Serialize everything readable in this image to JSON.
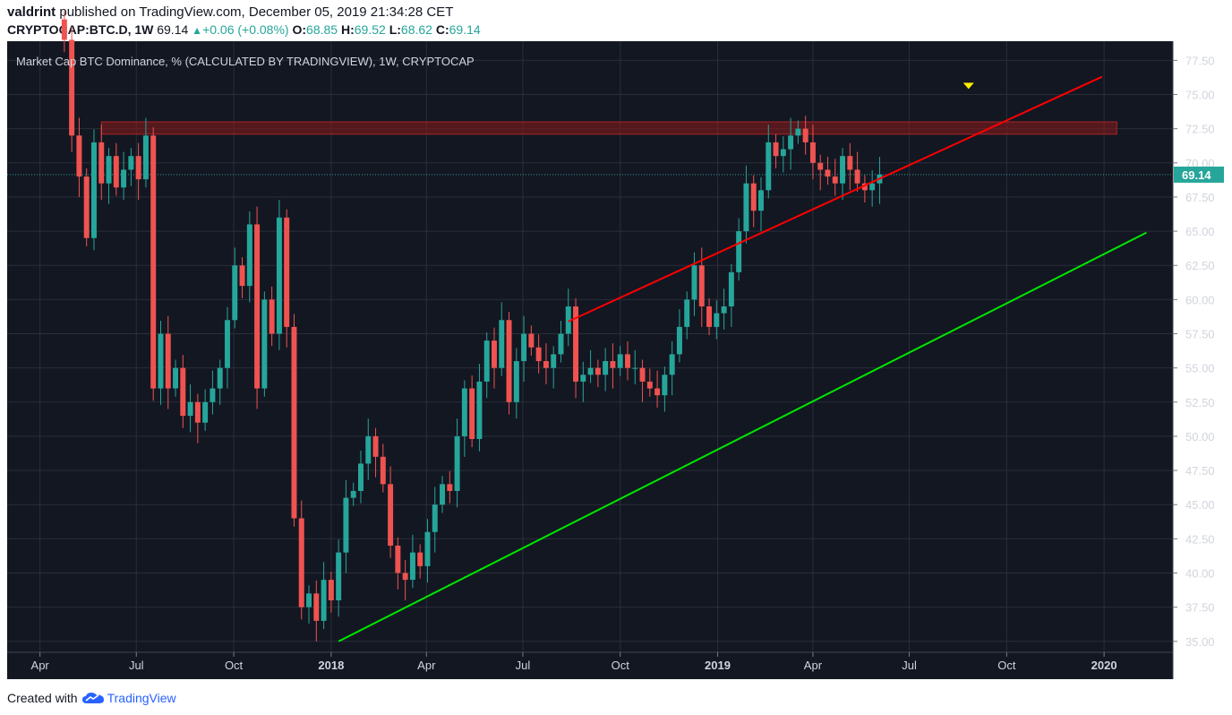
{
  "publish": {
    "author": "valdrint",
    "text": "published on TradingView.com, December 05, 2019 21:34:28 CET"
  },
  "ohlc": {
    "symbol": "CRYPTOCAP:BTC.D",
    "interval": "1W",
    "last": "69.14",
    "change": "+0.06 (+0.08%)",
    "open_label": "O:",
    "open": "68.85",
    "high_label": "H:",
    "high": "69.52",
    "low_label": "L:",
    "low": "68.62",
    "close_label": "C:",
    "close": "69.14"
  },
  "footer": {
    "created_with": "Created with",
    "brand": "TradingView"
  },
  "colors": {
    "background": "#131722",
    "up": "#26a69a",
    "down": "#ef5350",
    "upper_trendline": "#ff0000",
    "lower_trendline": "#00e600",
    "resistance_zone": "#8b1a1a",
    "marker": "#ffee00"
  },
  "chart_data": {
    "type": "candlestick",
    "title": "Market Cap BTC Dominance, % (CALCULATED BY TRADINGVIEW), 1W, CRYPTOCAP",
    "ylabel": "",
    "ylim": [
      34.2,
      78.9
    ],
    "y_ticks": [
      "35.00",
      "37.50",
      "40.00",
      "42.50",
      "45.00",
      "47.50",
      "50.00",
      "52.50",
      "55.00",
      "57.50",
      "60.00",
      "62.50",
      "65.00",
      "67.50",
      "70.00",
      "72.50",
      "75.00",
      "77.50"
    ],
    "x_ticks": [
      {
        "label": "Apr",
        "date": "2017-04-01"
      },
      {
        "label": "Jul",
        "date": "2017-07-01"
      },
      {
        "label": "Oct",
        "date": "2017-10-01"
      },
      {
        "label": "2018",
        "date": "2018-01-01",
        "bold": true
      },
      {
        "label": "Apr",
        "date": "2018-04-01"
      },
      {
        "label": "Jul",
        "date": "2018-07-01"
      },
      {
        "label": "Oct",
        "date": "2018-10-01"
      },
      {
        "label": "2019",
        "date": "2019-01-01",
        "bold": true
      },
      {
        "label": "Apr",
        "date": "2019-04-01"
      },
      {
        "label": "Jul",
        "date": "2019-07-01"
      },
      {
        "label": "Oct",
        "date": "2019-10-01"
      },
      {
        "label": "2020",
        "date": "2020-01-01",
        "bold": true
      }
    ],
    "x_range": [
      "2017-03-01",
      "2020-03-06"
    ],
    "last_price": {
      "value": 69.14,
      "label": "69.14"
    },
    "first_week": "2017-04-24",
    "closes": [
      79.0,
      72.0,
      69.0,
      64.5,
      71.5,
      68.5,
      70.5,
      68.2,
      69.5,
      70.5,
      68.8,
      72.0,
      53.5,
      57.5,
      53.5,
      55.0,
      51.5,
      52.5,
      51.0,
      52.5,
      53.5,
      55.0,
      58.5,
      62.5,
      61.0,
      65.5,
      53.5,
      60.0,
      57.5,
      66.0,
      58.0,
      44.0,
      37.5,
      38.5,
      36.5,
      39.5,
      38.0,
      41.5,
      45.5,
      46.0,
      48.0,
      50.0,
      48.5,
      46.5,
      42.0,
      40.0,
      39.5,
      41.5,
      40.5,
      43.0,
      45.0,
      46.5,
      46.0,
      50.0,
      53.5,
      49.8,
      54.0,
      57.0,
      55.0,
      58.5,
      52.5,
      55.5,
      57.5,
      56.5,
      55.5,
      55.0,
      56.0,
      57.5,
      59.5,
      54.0,
      54.5,
      55.0,
      54.5,
      55.5,
      55.0,
      56.0,
      55.0,
      55.0,
      54.0,
      53.5,
      53.0,
      54.5,
      56.0,
      58.0,
      60.0,
      62.5,
      59.5,
      58.0,
      59.0,
      59.5,
      62.0,
      65.0,
      68.5,
      66.5,
      68.0,
      71.5,
      70.5,
      71.0,
      72.0,
      72.5,
      71.5,
      70.0,
      69.5,
      69.0,
      68.5,
      70.5,
      69.5,
      68.5,
      68.0,
      68.5,
      69.14
    ],
    "annotations": [
      {
        "type": "trendline",
        "name": "upper-resistance-trendline",
        "start": {
          "date": "2018-08-13",
          "value": 58.4
        },
        "end": {
          "date": "2019-12-30",
          "value": 76.3
        }
      },
      {
        "type": "trendline",
        "name": "lower-support-trendline",
        "start": {
          "date": "2018-01-08",
          "value": 35.0
        },
        "end": {
          "date": "2020-02-10",
          "value": 64.9
        }
      },
      {
        "type": "zone",
        "name": "resistance-zone",
        "start": "2017-05-29",
        "end": "2020-01-13",
        "low": 72.1,
        "high": 73.0
      },
      {
        "type": "marker",
        "name": "top-marker",
        "date": "2019-08-26",
        "value": 75.6
      }
    ]
  }
}
